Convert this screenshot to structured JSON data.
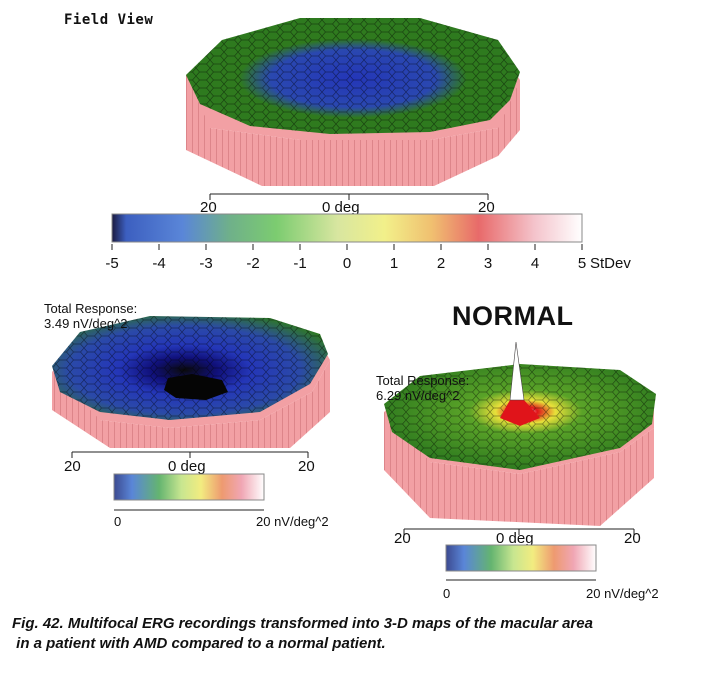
{
  "field_view": {
    "title": "Field View",
    "axis": {
      "left": "20",
      "center": "0 deg",
      "right": "20"
    },
    "color_scale": {
      "ticks": [
        "-5",
        "-4",
        "-3",
        "-2",
        "-1",
        "0",
        "1",
        "2",
        "3",
        "4",
        "5"
      ],
      "unit": "StDev"
    }
  },
  "patient_map": {
    "total_response_label": "Total Response:",
    "total_response_value": "3.49 nV/deg^2",
    "axis": {
      "left": "20",
      "center": "0 deg",
      "right": "20"
    },
    "color_scale": {
      "min": "0",
      "max": "20 nV/deg^2"
    }
  },
  "normal_map": {
    "title": "NORMAL",
    "total_response_label": "Total Response:",
    "total_response_value": "6.29 nV/deg^2",
    "axis": {
      "left": "20",
      "center": "0 deg",
      "right": "20"
    },
    "color_scale": {
      "min": "0",
      "max": "20 nV/deg^2"
    }
  },
  "caption": {
    "line1": "Fig. 42. Multifocal ERG recordings transformed into 3-D maps of the macular area",
    "line2": " in a patient with AMD compared to a normal patient."
  },
  "colors": {
    "wall": "#f2a0a4",
    "wall_dark": "#d9787e",
    "green": "#2f7a1e",
    "blue": "#2436b8",
    "black": "#080808",
    "yellow": "#e8e03a",
    "red": "#e0141a",
    "white": "#ffffff"
  }
}
